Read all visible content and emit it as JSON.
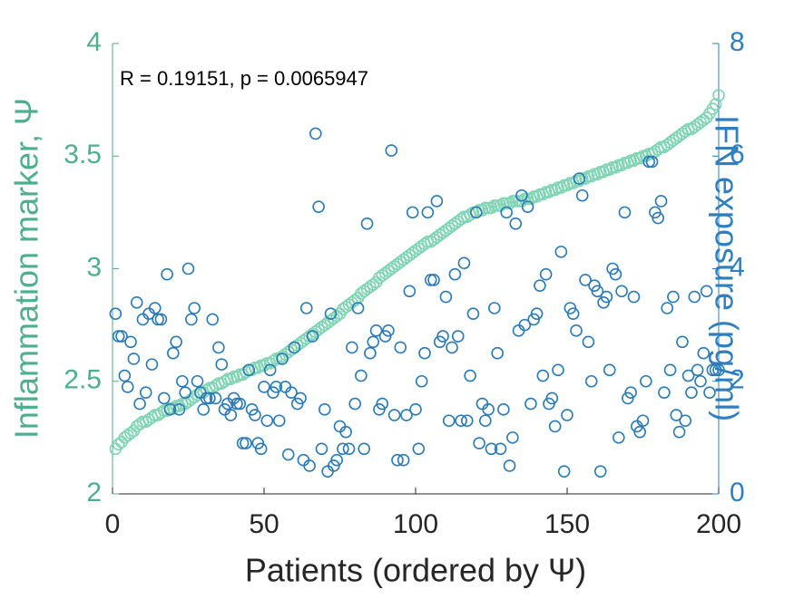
{
  "chart_data": {
    "type": "scatter",
    "annotation": "R = 0.19151, p = 0.0065947",
    "xlabel": "Patients (ordered by Ψ)",
    "ylabel": "Inflammation marker, Ψ",
    "y2label": "IFN exposure (pg/ml)",
    "xlim": [
      0,
      200
    ],
    "xticks": [
      0,
      50,
      100,
      150,
      200
    ],
    "ylim": [
      2,
      4
    ],
    "yticks": [
      2,
      2.5,
      3,
      3.5,
      4
    ],
    "y2lim": [
      0,
      8
    ],
    "y2ticks": [
      0,
      2,
      4,
      6,
      8
    ],
    "x": [
      1,
      2,
      3,
      4,
      5,
      6,
      7,
      8,
      9,
      10,
      11,
      12,
      13,
      14,
      15,
      16,
      17,
      18,
      19,
      20,
      21,
      22,
      23,
      24,
      25,
      26,
      27,
      28,
      29,
      30,
      31,
      32,
      33,
      34,
      35,
      36,
      37,
      38,
      39,
      40,
      41,
      42,
      43,
      44,
      45,
      46,
      47,
      48,
      49,
      50,
      51,
      52,
      53,
      54,
      55,
      56,
      57,
      58,
      59,
      60,
      61,
      62,
      63,
      64,
      65,
      66,
      67,
      68,
      69,
      70,
      71,
      72,
      73,
      74,
      75,
      76,
      77,
      78,
      79,
      80,
      81,
      82,
      83,
      84,
      85,
      86,
      87,
      88,
      89,
      90,
      91,
      92,
      93,
      94,
      95,
      96,
      97,
      98,
      99,
      100,
      101,
      102,
      103,
      104,
      105,
      106,
      107,
      108,
      109,
      110,
      111,
      112,
      113,
      114,
      115,
      116,
      117,
      118,
      119,
      120,
      121,
      122,
      123,
      124,
      125,
      126,
      127,
      128,
      129,
      130,
      131,
      132,
      133,
      134,
      135,
      136,
      137,
      138,
      139,
      140,
      141,
      142,
      143,
      144,
      145,
      146,
      147,
      148,
      149,
      150,
      151,
      152,
      153,
      154,
      155,
      156,
      157,
      158,
      159,
      160,
      161,
      162,
      163,
      164,
      165,
      166,
      167,
      168,
      169,
      170,
      171,
      172,
      173,
      174,
      175,
      176,
      177,
      178,
      179,
      180,
      181,
      182,
      183,
      184,
      185,
      186,
      187,
      188,
      189,
      190,
      191,
      192,
      193,
      194,
      195,
      196,
      197,
      198,
      199,
      200
    ],
    "series": [
      {
        "color": "#7fd4b4",
        "values": [
          2.2,
          2.22,
          2.23,
          2.25,
          2.26,
          2.27,
          2.28,
          2.3,
          2.31,
          2.32,
          2.32,
          2.33,
          2.34,
          2.35,
          2.35,
          2.36,
          2.37,
          2.37,
          2.38,
          2.38,
          2.39,
          2.39,
          2.4,
          2.4,
          2.41,
          2.42,
          2.43,
          2.44,
          2.45,
          2.45,
          2.46,
          2.47,
          2.47,
          2.48,
          2.49,
          2.49,
          2.5,
          2.51,
          2.51,
          2.52,
          2.52,
          2.53,
          2.53,
          2.54,
          2.55,
          2.55,
          2.56,
          2.56,
          2.57,
          2.57,
          2.58,
          2.58,
          2.59,
          2.6,
          2.6,
          2.61,
          2.62,
          2.63,
          2.64,
          2.65,
          2.66,
          2.67,
          2.68,
          2.69,
          2.7,
          2.71,
          2.72,
          2.73,
          2.74,
          2.75,
          2.76,
          2.77,
          2.78,
          2.79,
          2.8,
          2.82,
          2.83,
          2.84,
          2.85,
          2.86,
          2.87,
          2.89,
          2.9,
          2.91,
          2.92,
          2.93,
          2.94,
          2.96,
          2.97,
          2.98,
          2.99,
          3.0,
          3.01,
          3.02,
          3.03,
          3.04,
          3.05,
          3.06,
          3.07,
          3.08,
          3.09,
          3.1,
          3.11,
          3.12,
          3.12,
          3.13,
          3.14,
          3.15,
          3.16,
          3.17,
          3.18,
          3.19,
          3.2,
          3.21,
          3.22,
          3.23,
          3.23,
          3.24,
          3.25,
          3.25,
          3.26,
          3.26,
          3.27,
          3.27,
          3.27,
          3.28,
          3.28,
          3.28,
          3.29,
          3.29,
          3.29,
          3.3,
          3.3,
          3.3,
          3.3,
          3.31,
          3.31,
          3.31,
          3.32,
          3.32,
          3.33,
          3.33,
          3.34,
          3.34,
          3.35,
          3.35,
          3.36,
          3.36,
          3.37,
          3.37,
          3.38,
          3.38,
          3.39,
          3.39,
          3.4,
          3.4,
          3.41,
          3.41,
          3.42,
          3.42,
          3.43,
          3.43,
          3.44,
          3.44,
          3.45,
          3.45,
          3.46,
          3.46,
          3.47,
          3.47,
          3.48,
          3.48,
          3.49,
          3.49,
          3.5,
          3.5,
          3.51,
          3.51,
          3.52,
          3.53,
          3.54,
          3.54,
          3.55,
          3.56,
          3.57,
          3.58,
          3.59,
          3.6,
          3.61,
          3.62,
          3.62,
          3.63,
          3.64,
          3.65,
          3.66,
          3.67,
          3.69,
          3.71,
          3.73,
          3.77
        ]
      },
      {
        "color": "#2a7ab8",
        "axis": "y2",
        "values": [
          3.2,
          2.8,
          2.8,
          2.1,
          1.9,
          2.7,
          2.4,
          3.4,
          1.6,
          3.1,
          1.8,
          3.2,
          2.3,
          3.3,
          3.1,
          3.1,
          1.7,
          3.9,
          1.5,
          2.5,
          2.7,
          1.5,
          2.0,
          1.8,
          4.0,
          3.1,
          3.3,
          2.0,
          1.8,
          1.5,
          1.7,
          1.7,
          3.1,
          1.7,
          2.6,
          2.3,
          1.5,
          1.6,
          1.4,
          1.7,
          1.6,
          1.6,
          0.9,
          0.9,
          2.2,
          1.5,
          1.4,
          0.9,
          0.8,
          1.9,
          1.3,
          2.2,
          1.8,
          1.9,
          1.3,
          2.4,
          1.9,
          0.7,
          1.8,
          2.6,
          1.6,
          1.7,
          0.6,
          3.3,
          0.5,
          2.8,
          6.4,
          5.1,
          0.8,
          1.5,
          0.4,
          3.2,
          0.5,
          0.6,
          1.2,
          0.8,
          1.1,
          0.8,
          2.6,
          1.6,
          3.3,
          2.1,
          0.8,
          4.8,
          2.5,
          2.7,
          2.9,
          1.5,
          1.6,
          2.8,
          2.9,
          6.1,
          1.4,
          0.6,
          2.6,
          0.6,
          1.4,
          3.6,
          5.0,
          1.5,
          0.8,
          2.0,
          2.5,
          5.0,
          3.8,
          3.8,
          5.2,
          2.7,
          2.8,
          3.5,
          1.3,
          2.6,
          3.9,
          2.8,
          1.3,
          4.1,
          1.3,
          2.1,
          3.2,
          5.0,
          0.9,
          1.6,
          1.3,
          1.5,
          0.8,
          3.3,
          2.5,
          0.8,
          1.5,
          5.0,
          0.5,
          1.0,
          4.8,
          2.9,
          5.3,
          3.0,
          5.1,
          1.6,
          3.1,
          3.2,
          3.7,
          2.1,
          3.9,
          1.6,
          1.7,
          1.2,
          2.2,
          4.3,
          0.4,
          1.4,
          3.3,
          3.2,
          2.9,
          5.6,
          5.3,
          3.8,
          2.7,
          2.0,
          3.7,
          3.6,
          0.4,
          3.4,
          3.5,
          2.2,
          4.0,
          3.9,
          1.0,
          3.6,
          5.0,
          1.7,
          1.8,
          3.5,
          1.2,
          1.1,
          1.3,
          2.0,
          5.9,
          5.9,
          5.0,
          4.9,
          5.2,
          1.8,
          3.3,
          2.2,
          3.5,
          1.4,
          1.1,
          2.7,
          1.3,
          2.1,
          1.8,
          3.5,
          2.2,
          2.0,
          2.5,
          3.6,
          1.8,
          2.2,
          2.2,
          2.2
        ]
      }
    ],
    "ycolor": "#4fae8e",
    "y2color": "#2f7fbf"
  }
}
